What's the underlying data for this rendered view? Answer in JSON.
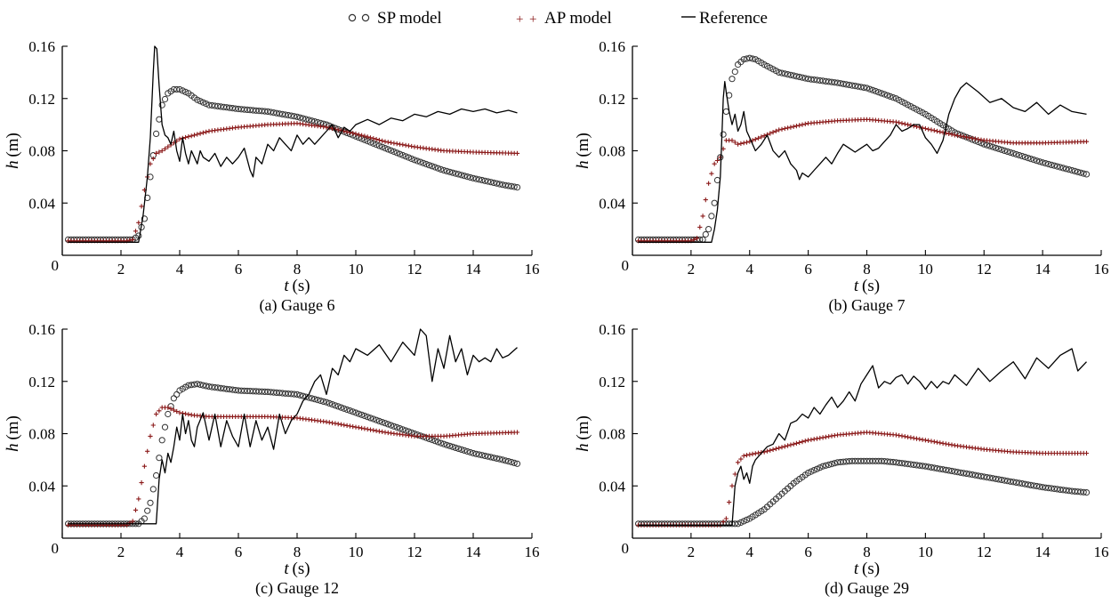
{
  "legend": {
    "sp_label": "SP model",
    "ap_label": "AP model",
    "ref_label": "Reference"
  },
  "colors": {
    "sp": "#333333",
    "ap": "#8b1a1a",
    "ref": "#000000",
    "axis": "#000000"
  },
  "chart_data": [
    {
      "type": "line",
      "caption": "(a) Gauge 6",
      "xlabel_var": "t",
      "xlabel_unit": "(s)",
      "ylabel_var": "h",
      "ylabel_unit": "(m)",
      "xlim": [
        0,
        16
      ],
      "ylim": [
        0,
        0.16
      ],
      "xticks": [
        0,
        2,
        4,
        6,
        8,
        10,
        12,
        14,
        16
      ],
      "yticks": [
        0.04,
        0.08,
        0.12,
        0.16
      ],
      "ytick_labels": [
        "0.04",
        "0.08",
        "0.12",
        "0.16"
      ],
      "zero_label": "0",
      "series": [
        {
          "name": "SP model",
          "style": "circle",
          "x": [
            0.2,
            2.4,
            2.6,
            2.8,
            3.0,
            3.2,
            3.4,
            3.6,
            3.8,
            4.0,
            4.3,
            4.6,
            5.0,
            6.0,
            7.0,
            8.0,
            9.0,
            10.0,
            11.0,
            12.0,
            13.0,
            14.0,
            15.0,
            15.5
          ],
          "y": [
            0.012,
            0.012,
            0.015,
            0.028,
            0.06,
            0.093,
            0.115,
            0.124,
            0.127,
            0.127,
            0.124,
            0.119,
            0.115,
            0.112,
            0.11,
            0.106,
            0.1,
            0.091,
            0.082,
            0.073,
            0.065,
            0.059,
            0.054,
            0.052
          ]
        },
        {
          "name": "AP model",
          "style": "plus",
          "x": [
            0.2,
            2.2,
            2.4,
            2.6,
            2.8,
            3.0,
            3.2,
            3.4,
            3.6,
            4.0,
            5.0,
            6.0,
            7.0,
            8.0,
            9.0,
            10.0,
            11.0,
            12.0,
            13.0,
            14.0,
            15.5
          ],
          "y": [
            0.011,
            0.011,
            0.012,
            0.025,
            0.05,
            0.07,
            0.078,
            0.08,
            0.083,
            0.089,
            0.095,
            0.098,
            0.1,
            0.101,
            0.098,
            0.093,
            0.087,
            0.083,
            0.08,
            0.079,
            0.078
          ]
        },
        {
          "name": "Reference",
          "style": "line",
          "x": [
            0.2,
            2.6,
            2.75,
            2.9,
            3.0,
            3.1,
            3.15,
            3.22,
            3.3,
            3.4,
            3.5,
            3.6,
            3.7,
            3.8,
            3.9,
            4.0,
            4.1,
            4.2,
            4.3,
            4.4,
            4.5,
            4.6,
            4.7,
            4.8,
            5.0,
            5.2,
            5.4,
            5.6,
            5.8,
            6.0,
            6.2,
            6.4,
            6.5,
            6.6,
            6.8,
            7.0,
            7.2,
            7.4,
            7.6,
            7.8,
            8.0,
            8.2,
            8.4,
            8.6,
            8.8,
            9.0,
            9.2,
            9.4,
            9.6,
            9.8,
            10.0,
            10.4,
            10.8,
            11.2,
            11.6,
            12.0,
            12.4,
            12.8,
            13.2,
            13.6,
            14.0,
            14.4,
            14.8,
            15.2,
            15.5
          ],
          "y": [
            0.01,
            0.01,
            0.03,
            0.06,
            0.09,
            0.14,
            0.16,
            0.158,
            0.13,
            0.1,
            0.092,
            0.09,
            0.085,
            0.095,
            0.08,
            0.072,
            0.09,
            0.078,
            0.07,
            0.08,
            0.075,
            0.07,
            0.08,
            0.075,
            0.072,
            0.078,
            0.068,
            0.075,
            0.07,
            0.075,
            0.082,
            0.065,
            0.06,
            0.075,
            0.07,
            0.085,
            0.08,
            0.09,
            0.085,
            0.08,
            0.092,
            0.085,
            0.09,
            0.085,
            0.09,
            0.095,
            0.1,
            0.09,
            0.098,
            0.095,
            0.1,
            0.104,
            0.1,
            0.105,
            0.103,
            0.108,
            0.106,
            0.11,
            0.108,
            0.112,
            0.11,
            0.112,
            0.109,
            0.111,
            0.109
          ]
        }
      ]
    },
    {
      "type": "line",
      "caption": "(b) Gauge 7",
      "xlabel_var": "t",
      "xlabel_unit": "(s)",
      "ylabel_var": "h",
      "ylabel_unit": "(m)",
      "xlim": [
        0,
        16
      ],
      "ylim": [
        0,
        0.16
      ],
      "xticks": [
        0,
        2,
        4,
        6,
        8,
        10,
        12,
        14,
        16
      ],
      "yticks": [
        0.04,
        0.08,
        0.12,
        0.16
      ],
      "ytick_labels": [
        "0.04",
        "0.08",
        "0.12",
        "0.16"
      ],
      "zero_label": "0",
      "series": [
        {
          "name": "SP model",
          "style": "circle",
          "x": [
            0.2,
            2.4,
            2.6,
            2.8,
            3.0,
            3.2,
            3.4,
            3.6,
            3.8,
            4.0,
            4.2,
            4.5,
            5.0,
            6.0,
            7.0,
            8.0,
            9.0,
            10.0,
            11.0,
            12.0,
            13.0,
            14.0,
            15.0,
            15.5
          ],
          "y": [
            0.012,
            0.012,
            0.02,
            0.04,
            0.075,
            0.11,
            0.135,
            0.146,
            0.15,
            0.151,
            0.15,
            0.146,
            0.14,
            0.135,
            0.132,
            0.128,
            0.12,
            0.108,
            0.094,
            0.085,
            0.078,
            0.071,
            0.065,
            0.062
          ]
        },
        {
          "name": "AP model",
          "style": "plus",
          "x": [
            0.2,
            2.0,
            2.2,
            2.4,
            2.6,
            2.8,
            3.0,
            3.2,
            3.4,
            3.6,
            4.0,
            5.0,
            6.0,
            7.0,
            8.0,
            9.0,
            10.0,
            11.0,
            12.0,
            13.0,
            14.0,
            15.5
          ],
          "y": [
            0.011,
            0.011,
            0.013,
            0.03,
            0.055,
            0.07,
            0.075,
            0.088,
            0.088,
            0.085,
            0.087,
            0.096,
            0.101,
            0.103,
            0.104,
            0.102,
            0.097,
            0.092,
            0.088,
            0.086,
            0.086,
            0.087
          ]
        },
        {
          "name": "Reference",
          "style": "line",
          "x": [
            0.2,
            2.7,
            2.8,
            2.9,
            3.0,
            3.05,
            3.1,
            3.15,
            3.2,
            3.3,
            3.4,
            3.5,
            3.6,
            3.7,
            3.8,
            3.9,
            4.0,
            4.2,
            4.4,
            4.6,
            4.8,
            5.0,
            5.2,
            5.4,
            5.6,
            5.7,
            5.8,
            6.0,
            6.2,
            6.4,
            6.6,
            6.8,
            7.0,
            7.2,
            7.4,
            7.6,
            7.8,
            8.0,
            8.2,
            8.4,
            8.6,
            8.8,
            9.0,
            9.2,
            9.4,
            9.6,
            9.8,
            10.0,
            10.2,
            10.4,
            10.6,
            10.8,
            11.0,
            11.2,
            11.4,
            11.8,
            12.2,
            12.6,
            13.0,
            13.4,
            13.8,
            14.2,
            14.6,
            15.0,
            15.5
          ],
          "y": [
            0.01,
            0.01,
            0.02,
            0.035,
            0.06,
            0.09,
            0.12,
            0.133,
            0.125,
            0.11,
            0.1,
            0.108,
            0.095,
            0.1,
            0.11,
            0.095,
            0.09,
            0.08,
            0.085,
            0.092,
            0.08,
            0.075,
            0.08,
            0.07,
            0.065,
            0.058,
            0.063,
            0.06,
            0.065,
            0.07,
            0.075,
            0.07,
            0.078,
            0.085,
            0.082,
            0.079,
            0.082,
            0.085,
            0.08,
            0.082,
            0.087,
            0.092,
            0.1,
            0.095,
            0.097,
            0.1,
            0.1,
            0.09,
            0.085,
            0.078,
            0.088,
            0.108,
            0.12,
            0.128,
            0.132,
            0.125,
            0.117,
            0.12,
            0.113,
            0.11,
            0.117,
            0.108,
            0.115,
            0.11,
            0.108
          ]
        }
      ]
    },
    {
      "type": "line",
      "caption": "(c) Gauge 12",
      "xlabel_var": "t",
      "xlabel_unit": "(s)",
      "ylabel_var": "h",
      "ylabel_unit": "(m)",
      "xlim": [
        0,
        16
      ],
      "ylim": [
        0,
        0.16
      ],
      "xticks": [
        0,
        2,
        4,
        6,
        8,
        10,
        12,
        14,
        16
      ],
      "yticks": [
        0.04,
        0.08,
        0.12,
        0.16
      ],
      "ytick_labels": [
        "0.04",
        "0.08",
        "0.12",
        "0.16"
      ],
      "zero_label": "0",
      "series": [
        {
          "name": "SP model",
          "style": "circle",
          "x": [
            0.2,
            2.6,
            2.8,
            3.0,
            3.2,
            3.4,
            3.6,
            3.8,
            4.0,
            4.3,
            4.6,
            5.0,
            6.0,
            7.0,
            8.0,
            9.0,
            10.0,
            11.0,
            12.0,
            13.0,
            14.0,
            15.0,
            15.5
          ],
          "y": [
            0.011,
            0.011,
            0.015,
            0.027,
            0.048,
            0.075,
            0.095,
            0.107,
            0.113,
            0.117,
            0.118,
            0.116,
            0.113,
            0.112,
            0.11,
            0.104,
            0.096,
            0.088,
            0.08,
            0.072,
            0.065,
            0.06,
            0.057
          ]
        },
        {
          "name": "AP model",
          "style": "plus",
          "x": [
            0.2,
            2.2,
            2.4,
            2.6,
            2.8,
            3.0,
            3.2,
            3.4,
            3.6,
            3.8,
            4.0,
            4.5,
            5.0,
            6.0,
            7.0,
            8.0,
            9.0,
            10.0,
            11.0,
            12.0,
            13.0,
            14.0,
            15.5
          ],
          "y": [
            0.01,
            0.01,
            0.013,
            0.03,
            0.055,
            0.078,
            0.095,
            0.1,
            0.1,
            0.098,
            0.096,
            0.094,
            0.093,
            0.093,
            0.093,
            0.092,
            0.089,
            0.085,
            0.081,
            0.078,
            0.078,
            0.08,
            0.081
          ]
        },
        {
          "name": "Reference",
          "style": "line",
          "x": [
            0.2,
            3.2,
            3.3,
            3.4,
            3.5,
            3.6,
            3.7,
            3.8,
            3.9,
            4.0,
            4.1,
            4.2,
            4.3,
            4.4,
            4.5,
            4.6,
            4.8,
            5.0,
            5.2,
            5.4,
            5.6,
            5.8,
            6.0,
            6.2,
            6.4,
            6.6,
            6.8,
            7.0,
            7.2,
            7.4,
            7.6,
            7.8,
            8.0,
            8.2,
            8.4,
            8.6,
            8.8,
            9.0,
            9.2,
            9.4,
            9.6,
            9.8,
            10.0,
            10.4,
            10.8,
            11.2,
            11.6,
            12.0,
            12.2,
            12.4,
            12.6,
            12.8,
            13.0,
            13.2,
            13.4,
            13.6,
            13.8,
            14.0,
            14.2,
            14.4,
            14.6,
            14.8,
            15.0,
            15.2,
            15.5
          ],
          "y": [
            0.011,
            0.011,
            0.045,
            0.06,
            0.05,
            0.065,
            0.058,
            0.07,
            0.085,
            0.075,
            0.095,
            0.08,
            0.09,
            0.075,
            0.07,
            0.085,
            0.096,
            0.075,
            0.095,
            0.07,
            0.09,
            0.078,
            0.07,
            0.095,
            0.07,
            0.09,
            0.075,
            0.085,
            0.068,
            0.095,
            0.08,
            0.09,
            0.095,
            0.105,
            0.11,
            0.12,
            0.125,
            0.11,
            0.13,
            0.125,
            0.14,
            0.135,
            0.145,
            0.14,
            0.148,
            0.135,
            0.15,
            0.14,
            0.16,
            0.155,
            0.12,
            0.145,
            0.13,
            0.155,
            0.135,
            0.145,
            0.125,
            0.14,
            0.135,
            0.138,
            0.135,
            0.145,
            0.138,
            0.14,
            0.146
          ]
        }
      ]
    },
    {
      "type": "line",
      "caption": "(d) Gauge 29",
      "xlabel_var": "t",
      "xlabel_unit": "(s)",
      "ylabel_var": "h",
      "ylabel_unit": "(m)",
      "xlim": [
        0,
        16
      ],
      "ylim": [
        0,
        0.16
      ],
      "xticks": [
        0,
        2,
        4,
        6,
        8,
        10,
        12,
        14,
        16
      ],
      "yticks": [
        0.04,
        0.08,
        0.12,
        0.16
      ],
      "ytick_labels": [
        "0.04",
        "0.08",
        "0.12",
        "0.16"
      ],
      "zero_label": "0",
      "series": [
        {
          "name": "SP model",
          "style": "circle",
          "x": [
            0.2,
            3.6,
            4.0,
            4.5,
            5.0,
            5.5,
            6.0,
            6.5,
            7.0,
            7.5,
            8.0,
            8.5,
            9.0,
            10.0,
            11.0,
            12.0,
            13.0,
            14.0,
            15.0,
            15.5
          ],
          "y": [
            0.011,
            0.011,
            0.015,
            0.022,
            0.032,
            0.042,
            0.05,
            0.055,
            0.058,
            0.059,
            0.059,
            0.059,
            0.058,
            0.055,
            0.051,
            0.047,
            0.043,
            0.039,
            0.036,
            0.035
          ]
        },
        {
          "name": "AP model",
          "style": "plus",
          "x": [
            0.2,
            3.0,
            3.2,
            3.4,
            3.6,
            3.8,
            4.0,
            4.5,
            5.0,
            6.0,
            7.0,
            8.0,
            9.0,
            10.0,
            11.0,
            12.0,
            13.0,
            14.0,
            15.5
          ],
          "y": [
            0.01,
            0.01,
            0.015,
            0.04,
            0.058,
            0.063,
            0.064,
            0.066,
            0.069,
            0.075,
            0.079,
            0.081,
            0.079,
            0.075,
            0.071,
            0.068,
            0.066,
            0.065,
            0.065
          ]
        },
        {
          "name": "Reference",
          "style": "line",
          "x": [
            0.2,
            3.4,
            3.5,
            3.6,
            3.7,
            3.8,
            3.9,
            4.0,
            4.1,
            4.2,
            4.4,
            4.6,
            4.8,
            5.0,
            5.2,
            5.4,
            5.6,
            5.8,
            6.0,
            6.2,
            6.4,
            6.6,
            6.8,
            7.0,
            7.2,
            7.4,
            7.6,
            7.8,
            8.0,
            8.2,
            8.4,
            8.6,
            8.8,
            9.0,
            9.2,
            9.4,
            9.6,
            9.8,
            10.0,
            10.2,
            10.4,
            10.6,
            10.8,
            11.0,
            11.4,
            11.8,
            12.2,
            12.6,
            13.0,
            13.4,
            13.8,
            14.2,
            14.6,
            15.0,
            15.2,
            15.5
          ],
          "y": [
            0.01,
            0.01,
            0.04,
            0.05,
            0.055,
            0.045,
            0.05,
            0.042,
            0.055,
            0.06,
            0.065,
            0.07,
            0.072,
            0.08,
            0.075,
            0.088,
            0.09,
            0.095,
            0.092,
            0.1,
            0.095,
            0.102,
            0.108,
            0.1,
            0.105,
            0.112,
            0.105,
            0.118,
            0.125,
            0.132,
            0.115,
            0.12,
            0.118,
            0.123,
            0.125,
            0.118,
            0.124,
            0.12,
            0.114,
            0.12,
            0.115,
            0.12,
            0.118,
            0.125,
            0.117,
            0.13,
            0.12,
            0.128,
            0.135,
            0.122,
            0.138,
            0.13,
            0.14,
            0.145,
            0.128,
            0.135
          ]
        }
      ]
    }
  ]
}
